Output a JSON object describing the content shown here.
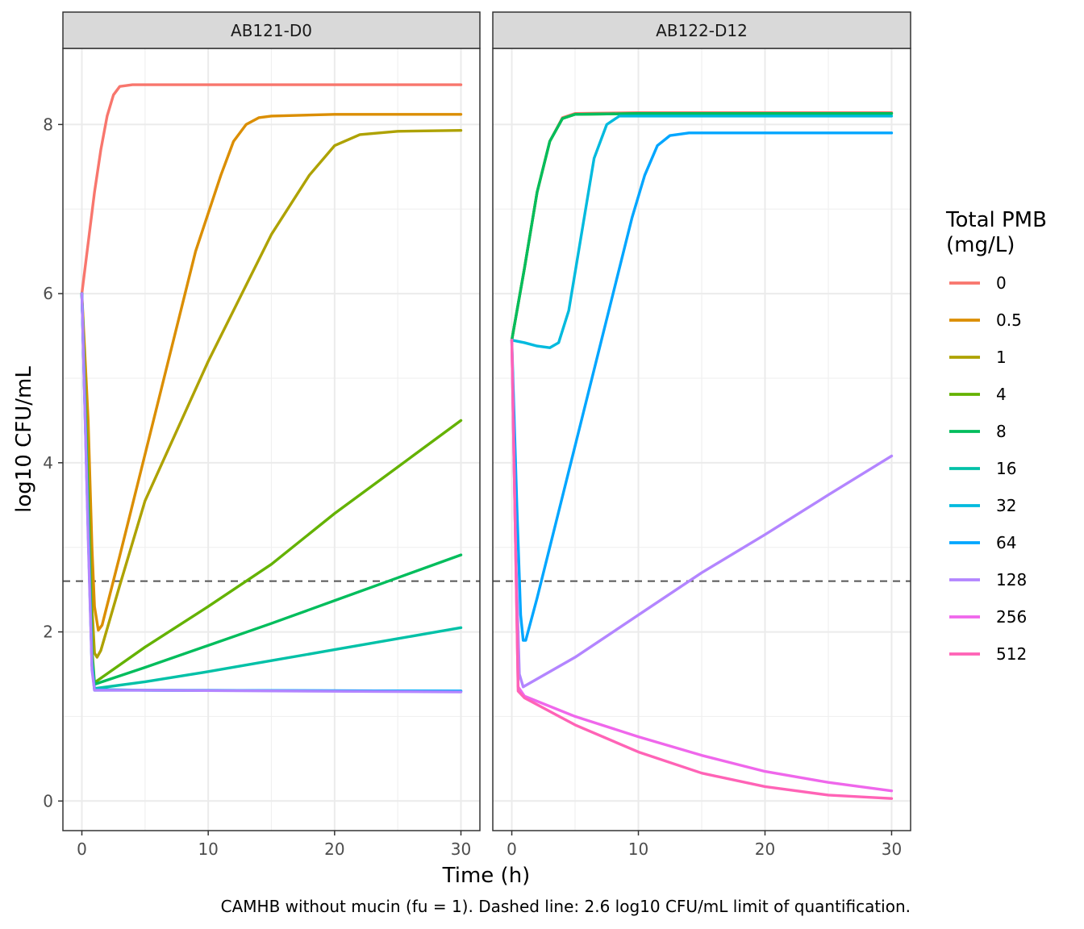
{
  "chart_data": {
    "type": "line",
    "facets": [
      {
        "label": "AB121-D0"
      },
      {
        "label": "AB122-D12"
      }
    ],
    "xlabel": "Time (h)",
    "ylabel": "log10 CFU/mL",
    "xlim": [
      -1.5,
      31.5
    ],
    "ylim": [
      -0.35,
      8.9
    ],
    "x_ticks": [
      0,
      10,
      20,
      30
    ],
    "y_ticks": [
      0,
      2,
      4,
      6,
      8
    ],
    "reference_line": {
      "y": 2.6,
      "style": "dashed",
      "color": "#555555"
    },
    "legend": {
      "title_lines": [
        "Total PMB",
        "(mg/L)"
      ],
      "position": "right"
    },
    "grid": true,
    "caption": "CAMHB without mucin (fu = 1). Dashed line: 2.6 log10 CFU/mL limit of quantification.",
    "series": [
      {
        "name": "0",
        "color": "#F8766D"
      },
      {
        "name": "0.5",
        "color": "#DB8E00"
      },
      {
        "name": "1",
        "color": "#AEA200"
      },
      {
        "name": "4",
        "color": "#64B200"
      },
      {
        "name": "8",
        "color": "#00BD5C"
      },
      {
        "name": "16",
        "color": "#00C1A7"
      },
      {
        "name": "32",
        "color": "#00BADE"
      },
      {
        "name": "64",
        "color": "#00A6FF"
      },
      {
        "name": "128",
        "color": "#B385FF"
      },
      {
        "name": "256",
        "color": "#EF67EB"
      },
      {
        "name": "512",
        "color": "#FF63B6"
      }
    ],
    "curves": [
      [
        {
          "series": "0",
          "points": [
            [
              0,
              6
            ],
            [
              0.5,
              6.6
            ],
            [
              1,
              7.2
            ],
            [
              1.5,
              7.7
            ],
            [
              2,
              8.1
            ],
            [
              2.5,
              8.35
            ],
            [
              3,
              8.45
            ],
            [
              4,
              8.47
            ],
            [
              10,
              8.47
            ],
            [
              20,
              8.47
            ],
            [
              30,
              8.47
            ]
          ]
        },
        {
          "series": "0.5",
          "points": [
            [
              0,
              6
            ],
            [
              0.5,
              4.5
            ],
            [
              0.8,
              3.0
            ],
            [
              1.0,
              2.3
            ],
            [
              1.3,
              2.02
            ],
            [
              1.6,
              2.08
            ],
            [
              3,
              2.9
            ],
            [
              5,
              4.1
            ],
            [
              7,
              5.3
            ],
            [
              9,
              6.5
            ],
            [
              11,
              7.4
            ],
            [
              12,
              7.8
            ],
            [
              13,
              8.0
            ],
            [
              14,
              8.08
            ],
            [
              15,
              8.1
            ],
            [
              20,
              8.12
            ],
            [
              30,
              8.12
            ]
          ]
        },
        {
          "series": "1",
          "points": [
            [
              0,
              6
            ],
            [
              0.5,
              4.0
            ],
            [
              0.8,
              2.3
            ],
            [
              1.0,
              1.75
            ],
            [
              1.2,
              1.7
            ],
            [
              1.5,
              1.78
            ],
            [
              3,
              2.55
            ],
            [
              5,
              3.55
            ],
            [
              10,
              5.2
            ],
            [
              15,
              6.7
            ],
            [
              18,
              7.4
            ],
            [
              20,
              7.75
            ],
            [
              22,
              7.88
            ],
            [
              25,
              7.92
            ],
            [
              30,
              7.93
            ]
          ]
        },
        {
          "series": "4",
          "points": [
            [
              0,
              6
            ],
            [
              0.5,
              3.5
            ],
            [
              0.8,
              1.8
            ],
            [
              1.0,
              1.4
            ],
            [
              5,
              1.82
            ],
            [
              10,
              2.3
            ],
            [
              15,
              2.8
            ],
            [
              20,
              3.4
            ],
            [
              25,
              3.95
            ],
            [
              30,
              4.5
            ]
          ]
        },
        {
          "series": "8",
          "points": [
            [
              0,
              6
            ],
            [
              0.5,
              3.4
            ],
            [
              0.8,
              1.7
            ],
            [
              1.0,
              1.38
            ],
            [
              5,
              1.58
            ],
            [
              10,
              1.84
            ],
            [
              15,
              2.1
            ],
            [
              20,
              2.37
            ],
            [
              25,
              2.64
            ],
            [
              30,
              2.91
            ]
          ]
        },
        {
          "series": "16",
          "points": [
            [
              0,
              6
            ],
            [
              0.5,
              3.3
            ],
            [
              0.8,
              1.65
            ],
            [
              1.0,
              1.33
            ],
            [
              5,
              1.41
            ],
            [
              10,
              1.53
            ],
            [
              15,
              1.66
            ],
            [
              20,
              1.79
            ],
            [
              25,
              1.92
            ],
            [
              30,
              2.05
            ]
          ]
        },
        {
          "series": "32",
          "points": [
            [
              0,
              6
            ],
            [
              0.5,
              3.2
            ],
            [
              0.8,
              1.6
            ],
            [
              1.0,
              1.32
            ],
            [
              5,
              1.31
            ],
            [
              30,
              1.3
            ]
          ]
        },
        {
          "series": "64",
          "points": [
            [
              0,
              6
            ],
            [
              0.5,
              3.2
            ],
            [
              0.8,
              1.6
            ],
            [
              1.0,
              1.31
            ],
            [
              5,
              1.31
            ],
            [
              30,
              1.3
            ]
          ]
        },
        {
          "series": "128",
          "points": [
            [
              0,
              6
            ],
            [
              0.5,
              3.1
            ],
            [
              0.8,
              1.55
            ],
            [
              1.0,
              1.31
            ],
            [
              5,
              1.31
            ],
            [
              30,
              1.29
            ]
          ]
        }
      ],
      [
        {
          "series": "0",
          "points": [
            [
              0,
              5.45
            ],
            [
              1,
              6.3
            ],
            [
              2,
              7.2
            ],
            [
              3,
              7.8
            ],
            [
              4,
              8.08
            ],
            [
              5,
              8.13
            ],
            [
              10,
              8.14
            ],
            [
              20,
              8.14
            ],
            [
              30,
              8.14
            ]
          ]
        },
        {
          "series": "4",
          "points": [
            [
              0,
              5.45
            ],
            [
              1,
              6.3
            ],
            [
              2,
              7.2
            ],
            [
              3,
              7.8
            ],
            [
              4,
              8.07
            ],
            [
              5,
              8.12
            ],
            [
              10,
              8.13
            ],
            [
              20,
              8.13
            ],
            [
              30,
              8.13
            ]
          ]
        },
        {
          "series": "8",
          "points": [
            [
              0,
              5.45
            ],
            [
              1,
              6.3
            ],
            [
              2,
              7.2
            ],
            [
              3,
              7.8
            ],
            [
              4,
              8.07
            ],
            [
              5,
              8.12
            ],
            [
              10,
              8.13
            ],
            [
              20,
              8.13
            ],
            [
              30,
              8.13
            ]
          ]
        },
        {
          "series": "32",
          "points": [
            [
              0,
              5.45
            ],
            [
              1,
              5.42
            ],
            [
              2,
              5.38
            ],
            [
              3,
              5.36
            ],
            [
              3.7,
              5.42
            ],
            [
              4.5,
              5.8
            ],
            [
              5.5,
              6.7
            ],
            [
              6.5,
              7.6
            ],
            [
              7.5,
              8.0
            ],
            [
              8.5,
              8.1
            ],
            [
              10,
              8.1
            ],
            [
              20,
              8.1
            ],
            [
              30,
              8.1
            ]
          ]
        },
        {
          "series": "64",
          "points": [
            [
              0,
              5.45
            ],
            [
              0.4,
              3.5
            ],
            [
              0.7,
              2.2
            ],
            [
              0.9,
              1.9
            ],
            [
              1.1,
              1.9
            ],
            [
              2,
              2.4
            ],
            [
              4,
              3.6
            ],
            [
              6,
              4.8
            ],
            [
              8,
              6.0
            ],
            [
              9.5,
              6.9
            ],
            [
              10.5,
              7.4
            ],
            [
              11.5,
              7.75
            ],
            [
              12.5,
              7.87
            ],
            [
              14,
              7.9
            ],
            [
              20,
              7.9
            ],
            [
              30,
              7.9
            ]
          ]
        },
        {
          "series": "128",
          "points": [
            [
              0,
              5.45
            ],
            [
              0.3,
              3.0
            ],
            [
              0.6,
              1.5
            ],
            [
              0.9,
              1.35
            ],
            [
              5,
              1.7
            ],
            [
              10,
              2.2
            ],
            [
              15,
              2.7
            ],
            [
              20,
              3.15
            ],
            [
              25,
              3.62
            ],
            [
              30,
              4.08
            ]
          ]
        },
        {
          "series": "256",
          "points": [
            [
              0,
              5.45
            ],
            [
              0.3,
              3.0
            ],
            [
              0.5,
              1.35
            ],
            [
              1,
              1.24
            ],
            [
              5,
              1.0
            ],
            [
              10,
              0.76
            ],
            [
              15,
              0.54
            ],
            [
              20,
              0.35
            ],
            [
              25,
              0.22
            ],
            [
              30,
              0.12
            ]
          ]
        },
        {
          "series": "512",
          "points": [
            [
              0,
              5.45
            ],
            [
              0.3,
              3.0
            ],
            [
              0.5,
              1.3
            ],
            [
              1,
              1.22
            ],
            [
              5,
              0.9
            ],
            [
              10,
              0.58
            ],
            [
              15,
              0.33
            ],
            [
              20,
              0.17
            ],
            [
              25,
              0.07
            ],
            [
              30,
              0.03
            ]
          ]
        }
      ]
    ]
  }
}
